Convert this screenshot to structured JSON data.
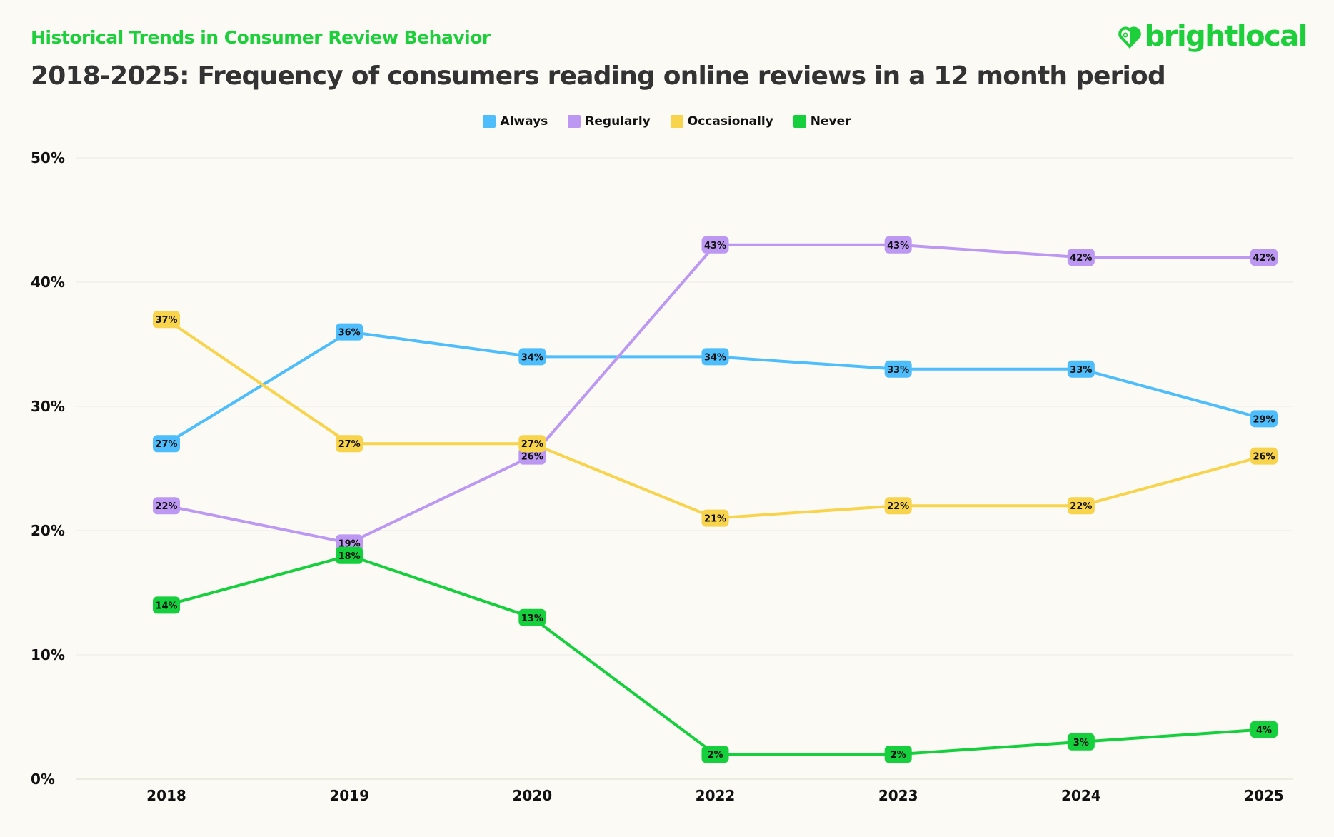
{
  "header": {
    "kicker": "Historical Trends in Consumer Review Behavior",
    "title": "2018-2025: Frequency of consumers reading online reviews in a 12 month period",
    "logo_text": "brightlocal"
  },
  "colors": {
    "brand": "#1dcf3a",
    "Always": "#4dbdfb",
    "Regularly": "#bc98f3",
    "Occasionally": "#f8d34c",
    "Never": "#16cf3c"
  },
  "chart_data": {
    "type": "line",
    "title": "2018-2025: Frequency of consumers reading online reviews in a 12 month period",
    "categories": [
      "2018",
      "2019",
      "2020",
      "2022",
      "2023",
      "2024",
      "2025"
    ],
    "ylim": [
      0,
      50
    ],
    "yticks": [
      "0%",
      "10%",
      "20%",
      "30%",
      "40%",
      "50%"
    ],
    "ytick_values": [
      0,
      10,
      20,
      30,
      40,
      50
    ],
    "grid": true,
    "legend": "top-center",
    "series": [
      {
        "name": "Always",
        "color": "#4dbdfb",
        "values": [
          27,
          36,
          34,
          34,
          33,
          33,
          29
        ]
      },
      {
        "name": "Regularly",
        "color": "#bc98f3",
        "values": [
          22,
          19,
          26,
          43,
          43,
          42,
          42
        ]
      },
      {
        "name": "Occasionally",
        "color": "#f8d34c",
        "values": [
          37,
          27,
          27,
          21,
          22,
          22,
          26
        ]
      },
      {
        "name": "Never",
        "color": "#16cf3c",
        "values": [
          14,
          18,
          13,
          2,
          2,
          3,
          4
        ]
      }
    ]
  }
}
